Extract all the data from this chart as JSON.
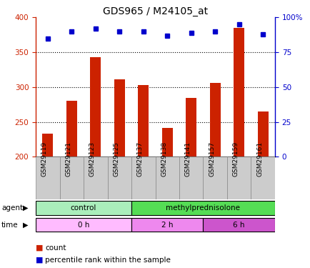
{
  "title": "GDS965 / M24105_at",
  "categories": [
    "GSM29119",
    "GSM29121",
    "GSM29123",
    "GSM29125",
    "GSM29137",
    "GSM29138",
    "GSM29141",
    "GSM29157",
    "GSM29159",
    "GSM29161"
  ],
  "bar_values": [
    233,
    280,
    343,
    311,
    303,
    241,
    285,
    306,
    385,
    265
  ],
  "percentile_values": [
    85,
    90,
    92,
    90,
    90,
    87,
    89,
    90,
    95,
    88
  ],
  "bar_color": "#cc2200",
  "dot_color": "#0000cc",
  "ylim_left": [
    200,
    400
  ],
  "ylim_right": [
    0,
    100
  ],
  "yticks_left": [
    200,
    250,
    300,
    350,
    400
  ],
  "yticks_right": [
    0,
    25,
    50,
    75,
    100
  ],
  "ytick_labels_right": [
    "0",
    "25",
    "50",
    "75",
    "100%"
  ],
  "grid_values": [
    250,
    300,
    350
  ],
  "agent_groups": [
    {
      "label": "control",
      "start": 0,
      "end": 4,
      "color": "#aaeebb"
    },
    {
      "label": "methylprednisolone",
      "start": 4,
      "end": 10,
      "color": "#55dd55"
    }
  ],
  "time_groups": [
    {
      "label": "0 h",
      "start": 0,
      "end": 4,
      "color": "#ffbbff"
    },
    {
      "label": "2 h",
      "start": 4,
      "end": 7,
      "color": "#ee88ee"
    },
    {
      "label": "6 h",
      "start": 7,
      "end": 10,
      "color": "#cc55cc"
    }
  ],
  "legend_count_label": "count",
  "legend_percentile_label": "percentile rank within the sample",
  "agent_label": "agent",
  "time_label": "time",
  "left_axis_color": "#cc2200",
  "right_axis_color": "#0000cc",
  "xtick_bg_color": "#cccccc",
  "xtick_border_color": "#888888"
}
